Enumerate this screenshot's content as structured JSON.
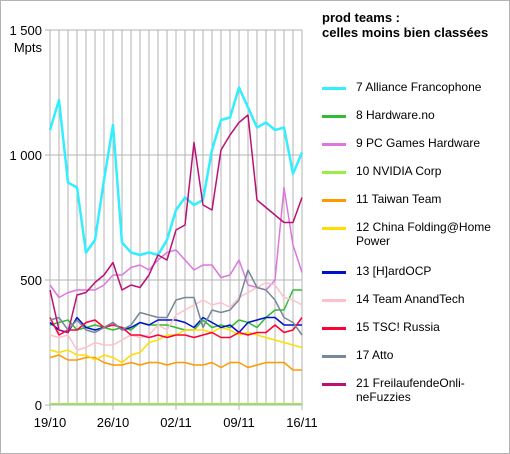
{
  "chart_data": {
    "type": "line",
    "title": "prod teams :\ncelles moins bien classées",
    "ylabel": "Mpts",
    "ylim": [
      0,
      1500
    ],
    "yticks": [
      0,
      500,
      1000,
      1500
    ],
    "ytick_labels": [
      "0",
      "500",
      "1 000",
      "1 500"
    ],
    "xtick_labels": [
      "19/10",
      "26/10",
      "02/11",
      "09/11",
      "16/11"
    ],
    "xtick_positions": [
      0,
      7,
      14,
      21,
      28
    ],
    "x": [
      0,
      1,
      2,
      3,
      4,
      5,
      6,
      7,
      8,
      9,
      10,
      11,
      12,
      13,
      14,
      15,
      16,
      17,
      18,
      19,
      20,
      21,
      22,
      23,
      24,
      25,
      26,
      27,
      28
    ],
    "grid": true,
    "legend_position": "right",
    "series": [
      {
        "name": "7 Alliance Francophone",
        "color": "#33eeff",
        "values": [
          1100,
          1220,
          890,
          870,
          610,
          660,
          900,
          1120,
          650,
          610,
          600,
          610,
          600,
          660,
          780,
          830,
          800,
          820,
          1020,
          1140,
          1150,
          1270,
          1190,
          1110,
          1130,
          1100,
          1110,
          925,
          1010
        ]
      },
      {
        "name": "8 Hardware.no",
        "color": "#33bb33",
        "values": [
          320,
          330,
          340,
          300,
          310,
          320,
          310,
          300,
          310,
          300,
          330,
          320,
          320,
          320,
          310,
          300,
          300,
          340,
          310,
          320,
          310,
          340,
          330,
          310,
          350,
          380,
          380,
          460,
          460
        ]
      },
      {
        "name": "9 PC Games Hardware",
        "color": "#dd77dd",
        "values": [
          480,
          430,
          450,
          460,
          460,
          460,
          480,
          520,
          520,
          550,
          560,
          540,
          580,
          610,
          620,
          580,
          540,
          560,
          560,
          510,
          520,
          580,
          480,
          470,
          460,
          500,
          870,
          640,
          530
        ]
      },
      {
        "name": "10 NVIDIA Corp",
        "color": "#99ee44",
        "values": [
          5,
          5,
          5,
          5,
          5,
          5,
          5,
          5,
          5,
          5,
          5,
          5,
          5,
          5,
          5,
          5,
          5,
          5,
          5,
          5,
          5,
          5,
          5,
          5,
          5,
          5,
          5,
          5,
          5
        ]
      },
      {
        "name": "11 Taiwan Team",
        "color": "#ff9900",
        "values": [
          190,
          200,
          180,
          180,
          190,
          190,
          170,
          160,
          160,
          170,
          160,
          170,
          170,
          160,
          170,
          170,
          160,
          160,
          170,
          150,
          170,
          170,
          150,
          160,
          170,
          170,
          170,
          140,
          140
        ]
      },
      {
        "name": "12 China Folding@Home Power",
        "color": "#ffdd00",
        "values": [
          220,
          210,
          220,
          200,
          200,
          180,
          200,
          190,
          170,
          200,
          210,
          250,
          260,
          280,
          280,
          300,
          300,
          300,
          290,
          310,
          300,
          280,
          290,
          280,
          270,
          260,
          250,
          240,
          230
        ]
      },
      {
        "name": "13 [H]ardOCP",
        "color": "#0011cc",
        "values": [
          330,
          300,
          290,
          350,
          310,
          300,
          310,
          330,
          300,
          310,
          330,
          320,
          340,
          340,
          340,
          330,
          310,
          350,
          330,
          310,
          320,
          290,
          330,
          340,
          350,
          350,
          320,
          320,
          320
        ]
      },
      {
        "name": "14 Team AnandTech",
        "color": "#ffc0cc",
        "values": [
          280,
          270,
          280,
          220,
          230,
          250,
          240,
          240,
          260,
          280,
          270,
          280,
          320,
          300,
          360,
          380,
          400,
          420,
          400,
          410,
          390,
          430,
          450,
          470,
          490,
          480,
          430,
          420,
          400
        ]
      },
      {
        "name": "15 TSC! Russia",
        "color": "#ff0033",
        "values": [
          350,
          280,
          300,
          300,
          330,
          340,
          310,
          320,
          310,
          280,
          280,
          270,
          280,
          270,
          280,
          280,
          270,
          280,
          290,
          270,
          270,
          290,
          280,
          290,
          290,
          320,
          290,
          300,
          350
        ]
      },
      {
        "name": "17 Atto",
        "color": "#778899",
        "values": [
          340,
          350,
          300,
          340,
          300,
          290,
          310,
          330,
          300,
          320,
          370,
          360,
          350,
          350,
          420,
          430,
          430,
          310,
          380,
          370,
          380,
          420,
          540,
          470,
          460,
          420,
          350,
          330,
          280
        ]
      },
      {
        "name": "21 FreilaufendeOnli-neFuzzies",
        "color": "#bb1177",
        "values": [
          460,
          300,
          290,
          440,
          450,
          490,
          520,
          570,
          460,
          480,
          470,
          520,
          600,
          580,
          700,
          720,
          1050,
          800,
          780,
          1020,
          1080,
          1130,
          1160,
          820,
          790,
          760,
          730,
          730,
          830
        ]
      }
    ]
  }
}
